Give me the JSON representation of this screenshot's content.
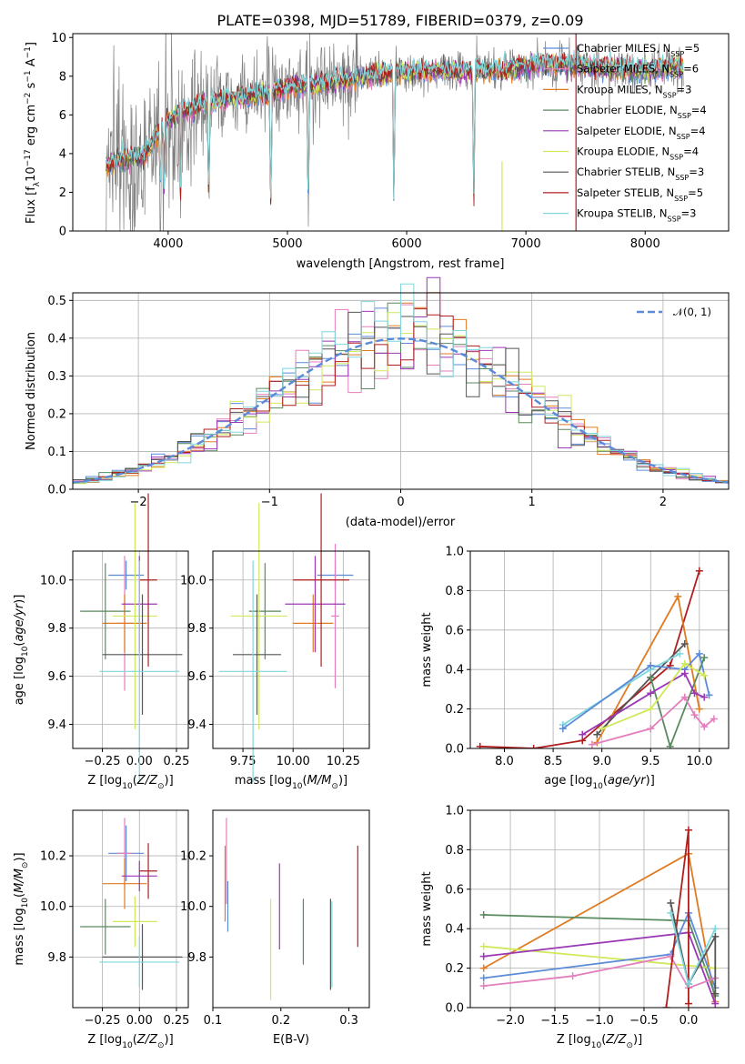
{
  "colors": {
    "chabrier_miles": "#5b8bd8",
    "salpeter_miles": "#e37fbd",
    "kroupa_miles": "#e07b22",
    "chabrier_elodie": "#5a8a5f",
    "salpeter_elodie": "#9b37b5",
    "kroupa_elodie": "#cfe95a",
    "chabrier_stelib": "#555555",
    "salpeter_stelib": "#b01e1e",
    "kroupa_stelib": "#7fd6dc",
    "spectrum_data": "#808080",
    "normal_curve": "#5b8bd8"
  },
  "chart_data": [
    {
      "id": "spectrum",
      "type": "line",
      "title": "PLATE=0398, MJD=51789, FIBERID=0379, z=0.09",
      "xlabel": "wavelength [Angstrom, rest frame]",
      "ylabel": "Flux [f_λ 10^-17 erg cm^-2 s^-1 A^-1]",
      "xlim": [
        3200,
        8700
      ],
      "ylim": [
        0,
        10.2
      ],
      "xticks": [
        "4000",
        "5000",
        "6000",
        "7000",
        "8000"
      ],
      "yticks": [
        "0",
        "2",
        "4",
        "6",
        "8",
        "10"
      ],
      "legend_placement": "upper right",
      "legend": [
        {
          "label": "Chabrier MILES, N_SSP=5",
          "color": "chabrier_miles"
        },
        {
          "label": "Salpeter MILES, N_SSP=6",
          "color": "salpeter_miles"
        },
        {
          "label": "Kroupa MILES, N_SSP=3",
          "color": "kroupa_miles"
        },
        {
          "label": "Chabrier ELODIE, N_SSP=4",
          "color": "chabrier_elodie"
        },
        {
          "label": "Salpeter ELODIE, N_SSP=4",
          "color": "salpeter_elodie"
        },
        {
          "label": "Kroupa ELODIE, N_SSP=4",
          "color": "kroupa_elodie"
        },
        {
          "label": "Chabrier STELIB, N_SSP=3",
          "color": "chabrier_stelib"
        },
        {
          "label": "Salpeter STELIB, N_SSP=5",
          "color": "salpeter_stelib"
        },
        {
          "label": "Kroupa STELIB, N_SSP=3",
          "color": "kroupa_stelib"
        }
      ],
      "continuum": [
        [
          3480,
          3.4
        ],
        [
          3600,
          3.7
        ],
        [
          3800,
          3.9
        ],
        [
          3950,
          5.4
        ],
        [
          4100,
          6.2
        ],
        [
          4300,
          6.5
        ],
        [
          4500,
          6.8
        ],
        [
          4800,
          7.1
        ],
        [
          5000,
          7.4
        ],
        [
          5300,
          7.6
        ],
        [
          5600,
          7.9
        ],
        [
          5900,
          8.2
        ],
        [
          6200,
          8.3
        ],
        [
          6500,
          8.2
        ],
        [
          6800,
          8.3
        ],
        [
          7100,
          8.6
        ],
        [
          7400,
          8.6
        ],
        [
          7700,
          8.4
        ],
        [
          8000,
          8.3
        ],
        [
          8300,
          8.5
        ]
      ],
      "absorption_lines": [
        [
          3934,
          2.4
        ],
        [
          3968,
          2.0
        ],
        [
          4102,
          1.0
        ],
        [
          4250,
          7.0
        ],
        [
          4340,
          1.3
        ],
        [
          4861,
          1.0
        ],
        [
          5175,
          0.8
        ],
        [
          5893,
          1.2
        ],
        [
          6563,
          1.0
        ],
        [
          6800,
          8.5
        ]
      ],
      "vertical_spikes": [
        {
          "x": 6800,
          "y0": 0,
          "y1": 3.6,
          "color": "kroupa_elodie"
        },
        {
          "x": 7420,
          "y0": 0,
          "y1": 10.2,
          "color": "salpeter_stelib"
        }
      ]
    },
    {
      "id": "residuals",
      "type": "line",
      "xlabel": "(data-model)/error",
      "ylabel": "Normed distribution",
      "xlim": [
        -2.5,
        2.5
      ],
      "ylim": [
        0,
        0.52
      ],
      "xticks": [
        "−2",
        "−1",
        "0",
        "1",
        "2"
      ],
      "yticks": [
        "0.0",
        "0.1",
        "0.2",
        "0.3",
        "0.4",
        "0.5"
      ],
      "grid": true,
      "legend_placement": "upper right",
      "legend": [
        {
          "label": "𝒩(0, 1)",
          "color": "normal_curve",
          "style": "dashed"
        }
      ],
      "normal": {
        "mean": 0,
        "sigma": 1
      },
      "histogram_bin_width": 0.1,
      "histogram_series": [
        "chabrier_miles",
        "salpeter_miles",
        "kroupa_miles",
        "chabrier_elodie",
        "salpeter_elodie",
        "kroupa_elodie",
        "chabrier_stelib",
        "salpeter_stelib",
        "kroupa_stelib"
      ]
    },
    {
      "id": "age_vs_Z",
      "type": "scatter",
      "xlabel": "Z [log10(Z/Z⊙)]",
      "ylabel": "age [log10(age/yr)]",
      "xlim": [
        -0.45,
        0.33
      ],
      "ylim": [
        9.3,
        10.12
      ],
      "xticks": [
        {
          "v": -0.25,
          "t": "−0.25"
        },
        {
          "v": 0,
          "t": "0.00"
        },
        {
          "v": 0.25,
          "t": "0.25"
        }
      ],
      "yticks": [
        {
          "v": 9.4,
          "t": "9.4"
        },
        {
          "v": 9.6,
          "t": "9.6"
        },
        {
          "v": 9.8,
          "t": "9.8"
        },
        {
          "v": 10.0,
          "t": "10.0"
        }
      ],
      "grid": true,
      "points": [
        {
          "c": "chabrier_miles",
          "x": -0.09,
          "xe": 0.12,
          "y": 10.02,
          "ye": 0.06
        },
        {
          "c": "salpeter_miles",
          "x": -0.1,
          "xe": 0.05,
          "y": 9.82,
          "ye": 0.28
        },
        {
          "c": "kroupa_miles",
          "x": -0.1,
          "xe": 0.15,
          "y": 9.82,
          "ye": 0.12
        },
        {
          "c": "chabrier_elodie",
          "x": -0.23,
          "xe": 0.17,
          "y": 9.87,
          "ye": 0.2
        },
        {
          "c": "salpeter_elodie",
          "x": 0.0,
          "xe": 0.12,
          "y": 9.9,
          "ye": 0.2
        },
        {
          "c": "kroupa_elodie",
          "x": -0.03,
          "xe": 0.15,
          "y": 9.85,
          "ye": 0.47
        },
        {
          "c": "chabrier_stelib",
          "x": 0.02,
          "xe": 0.27,
          "y": 9.69,
          "ye": 0.25
        },
        {
          "c": "salpeter_stelib",
          "x": 0.06,
          "xe": 0.06,
          "y": 10.0,
          "ye": 0.36
        },
        {
          "c": "kroupa_stelib",
          "x": 0.0,
          "xe": 0.27,
          "y": 9.62,
          "ye": 0.46
        }
      ]
    },
    {
      "id": "age_vs_mass",
      "type": "scatter",
      "xlabel": "mass [log10(M/M⊙)]",
      "xlim": [
        9.6,
        10.38
      ],
      "ylim": [
        9.3,
        10.12
      ],
      "xticks": [
        {
          "v": 9.75,
          "t": "9.75"
        },
        {
          "v": 10.0,
          "t": "10.00"
        },
        {
          "v": 10.25,
          "t": "10.25"
        }
      ],
      "yticks": [
        {
          "v": 9.4,
          "t": "9.4"
        },
        {
          "v": 9.6,
          "t": "9.6"
        },
        {
          "v": 9.8,
          "t": "9.8"
        },
        {
          "v": 10.0,
          "t": "10.0"
        }
      ],
      "grid": true,
      "points": [
        {
          "c": "chabrier_miles",
          "x": 10.21,
          "xe": 0.09,
          "y": 10.02,
          "ye": 0.06
        },
        {
          "c": "salpeter_miles",
          "x": 10.21,
          "xe": 0.02,
          "y": 9.85,
          "ye": 0.3
        },
        {
          "c": "kroupa_miles",
          "x": 10.1,
          "xe": 0.1,
          "y": 9.82,
          "ye": 0.12
        },
        {
          "c": "chabrier_elodie",
          "x": 9.86,
          "xe": 0.08,
          "y": 9.87,
          "ye": 0.2
        },
        {
          "c": "salpeter_elodie",
          "x": 10.11,
          "xe": 0.15,
          "y": 9.9,
          "ye": 0.2
        },
        {
          "c": "kroupa_elodie",
          "x": 9.83,
          "xe": 0.14,
          "y": 9.85,
          "ye": 0.47
        },
        {
          "c": "chabrier_stelib",
          "x": 9.82,
          "xe": 0.12,
          "y": 9.69,
          "ye": 0.25
        },
        {
          "c": "salpeter_stelib",
          "x": 10.14,
          "xe": 0.14,
          "y": 10.0,
          "ye": 0.36
        },
        {
          "c": "kroupa_stelib",
          "x": 9.8,
          "xe": 0.17,
          "y": 9.62,
          "ye": 0.46
        }
      ]
    },
    {
      "id": "mass_weight_vs_age",
      "type": "line",
      "xlabel": "age [log10(age/yr)]",
      "ylabel": "mass weight",
      "xlim": [
        7.65,
        10.3
      ],
      "ylim": [
        0,
        1.0
      ],
      "xticks": [
        {
          "v": 8.0,
          "t": "8.0"
        },
        {
          "v": 8.5,
          "t": "8.5"
        },
        {
          "v": 9.0,
          "t": "9.0"
        },
        {
          "v": 9.5,
          "t": "9.5"
        },
        {
          "v": 10.0,
          "t": "10.0"
        }
      ],
      "yticks": [
        {
          "v": 0,
          "t": "0.0"
        },
        {
          "v": 0.2,
          "t": "0.2"
        },
        {
          "v": 0.4,
          "t": "0.4"
        },
        {
          "v": 0.6,
          "t": "0.6"
        },
        {
          "v": 0.8,
          "t": "0.8"
        },
        {
          "v": 1.0,
          "t": "1.0"
        }
      ],
      "grid": true,
      "series": [
        {
          "c": "salpeter_stelib",
          "x": [
            7.75,
            8.3,
            8.8,
            9.7,
            10.0
          ],
          "y": [
            0.01,
            0.0,
            0.04,
            0.42,
            0.9
          ]
        },
        {
          "c": "kroupa_miles",
          "x": [
            8.95,
            9.78,
            10.0
          ],
          "y": [
            0.03,
            0.77,
            0.2
          ]
        },
        {
          "c": "chabrier_stelib",
          "x": [
            8.95,
            9.5,
            9.85
          ],
          "y": [
            0.07,
            0.36,
            0.53
          ]
        },
        {
          "c": "kroupa_stelib",
          "x": [
            8.6,
            9.5,
            9.8
          ],
          "y": [
            0.12,
            0.4,
            0.48
          ]
        },
        {
          "c": "chabrier_miles",
          "x": [
            8.6,
            9.5,
            9.85,
            10.0,
            10.1
          ],
          "y": [
            0.1,
            0.42,
            0.4,
            0.48,
            0.27
          ]
        },
        {
          "c": "chabrier_elodie",
          "x": [
            9.5,
            9.7,
            10.05
          ],
          "y": [
            0.36,
            0.01,
            0.46
          ]
        },
        {
          "c": "salpeter_elodie",
          "x": [
            8.8,
            9.5,
            9.85,
            9.95,
            10.05
          ],
          "y": [
            0.07,
            0.28,
            0.38,
            0.28,
            0.26
          ]
        },
        {
          "c": "kroupa_elodie",
          "x": [
            9.0,
            9.5,
            9.85,
            10.05
          ],
          "y": [
            0.1,
            0.2,
            0.43,
            0.37
          ]
        },
        {
          "c": "salpeter_miles",
          "x": [
            8.9,
            9.5,
            9.85,
            9.95,
            10.05,
            10.15
          ],
          "y": [
            0.02,
            0.1,
            0.26,
            0.17,
            0.11,
            0.15
          ]
        }
      ]
    },
    {
      "id": "mass_vs_Z",
      "type": "scatter",
      "xlabel": "Z [log10(Z/Z⊙)]",
      "ylabel": "mass [log10(M/M⊙)]",
      "xlim": [
        -0.45,
        0.33
      ],
      "ylim": [
        9.6,
        10.38
      ],
      "xticks": [
        {
          "v": -0.25,
          "t": "−0.25"
        },
        {
          "v": 0,
          "t": "0.00"
        },
        {
          "v": 0.25,
          "t": "0.25"
        }
      ],
      "yticks": [
        {
          "v": 9.8,
          "t": "9.8"
        },
        {
          "v": 10.0,
          "t": "10.0"
        },
        {
          "v": 10.2,
          "t": "10.2"
        }
      ],
      "grid": true,
      "points": [
        {
          "c": "chabrier_miles",
          "x": -0.09,
          "xe": 0.12,
          "y": 10.21,
          "ye": 0.11
        },
        {
          "c": "salpeter_miles",
          "x": -0.1,
          "xe": 0.05,
          "y": 10.21,
          "ye": 0.14
        },
        {
          "c": "kroupa_miles",
          "x": -0.1,
          "xe": 0.15,
          "y": 10.09,
          "ye": 0.1
        },
        {
          "c": "chabrier_elodie",
          "x": -0.23,
          "xe": 0.17,
          "y": 9.92,
          "ye": 0.11
        },
        {
          "c": "salpeter_elodie",
          "x": 0.0,
          "xe": 0.12,
          "y": 10.12,
          "ye": 0.06
        },
        {
          "c": "kroupa_elodie",
          "x": -0.03,
          "xe": 0.15,
          "y": 9.94,
          "ye": 0.1
        },
        {
          "c": "chabrier_stelib",
          "x": 0.02,
          "xe": 0.27,
          "y": 9.8,
          "ye": 0.13
        },
        {
          "c": "salpeter_stelib",
          "x": 0.06,
          "xe": 0.06,
          "y": 10.14,
          "ye": 0.11
        },
        {
          "c": "kroupa_stelib",
          "x": 0.0,
          "xe": 0.27,
          "y": 9.78,
          "ye": 0.1
        }
      ]
    },
    {
      "id": "mass_vs_EBV",
      "type": "scatter",
      "xlabel": "E(B-V)",
      "xlim": [
        0.1,
        0.33
      ],
      "ylim": [
        9.6,
        10.38
      ],
      "xticks": [
        {
          "v": 0.1,
          "t": "0.1"
        },
        {
          "v": 0.2,
          "t": "0.2"
        },
        {
          "v": 0.3,
          "t": "0.3"
        }
      ],
      "yticks": [
        {
          "v": 9.8,
          "t": "9.8"
        },
        {
          "v": 10.0,
          "t": "10.0"
        },
        {
          "v": 10.2,
          "t": "10.2"
        }
      ],
      "points": [
        {
          "c": "kroupa_miles",
          "x": 0.118,
          "xe": 0,
          "y": 10.09,
          "ye": 0.15
        },
        {
          "c": "salpeter_miles",
          "x": 0.12,
          "xe": 0,
          "y": 10.18,
          "ye": 0.17
        },
        {
          "c": "chabrier_miles",
          "x": 0.122,
          "xe": 0,
          "y": 10.0,
          "ye": 0.1
        },
        {
          "c": "kroupa_elodie",
          "x": 0.185,
          "xe": 0,
          "y": 9.83,
          "ye": 0.2
        },
        {
          "c": "salpeter_elodie",
          "x": 0.198,
          "xe": 0,
          "y": 10.0,
          "ye": 0.17
        },
        {
          "c": "chabrier_elodie",
          "x": 0.233,
          "xe": 0,
          "y": 9.9,
          "ye": 0.13
        },
        {
          "c": "chabrier_stelib",
          "x": 0.273,
          "xe": 0,
          "y": 9.85,
          "ye": 0.18
        },
        {
          "c": "kroupa_stelib",
          "x": 0.275,
          "xe": 0,
          "y": 9.85,
          "ye": 0.17
        },
        {
          "c": "salpeter_stelib",
          "x": 0.313,
          "xe": 0,
          "y": 10.04,
          "ye": 0.2
        }
      ]
    },
    {
      "id": "mass_weight_vs_Z",
      "type": "line",
      "xlabel": "Z [log10(Z/Z⊙)]",
      "ylabel": "mass weight",
      "xlim": [
        -2.45,
        0.45
      ],
      "ylim": [
        0,
        1.0
      ],
      "xticks": [
        {
          "v": -2.0,
          "t": "−2.0"
        },
        {
          "v": -1.5,
          "t": "−1.5"
        },
        {
          "v": -1.0,
          "t": "−1.0"
        },
        {
          "v": -0.5,
          "t": "−0.5"
        },
        {
          "v": 0.0,
          "t": "0.0"
        }
      ],
      "yticks": [
        {
          "v": 0,
          "t": "0.0"
        },
        {
          "v": 0.2,
          "t": "0.2"
        },
        {
          "v": 0.4,
          "t": "0.4"
        },
        {
          "v": 0.6,
          "t": "0.6"
        },
        {
          "v": 0.8,
          "t": "0.8"
        },
        {
          "v": 1.0,
          "t": "1.0"
        }
      ],
      "grid": true,
      "series": [
        {
          "c": "kroupa_miles",
          "x": [
            -2.3,
            0.0,
            0.3
          ],
          "y": [
            0.2,
            0.78,
            0.03
          ]
        },
        {
          "c": "chabrier_elodie",
          "x": [
            -2.3,
            0.0,
            0.3
          ],
          "y": [
            0.47,
            0.44,
            0.06
          ]
        },
        {
          "c": "kroupa_elodie",
          "x": [
            -2.3,
            0.3
          ],
          "y": [
            0.31,
            0.2
          ]
        },
        {
          "c": "salpeter_elodie",
          "x": [
            -2.3,
            0.0,
            0.3
          ],
          "y": [
            0.26,
            0.38,
            0.02
          ]
        },
        {
          "c": "chabrier_miles",
          "x": [
            -2.3,
            -0.2,
            0.0,
            0.3
          ],
          "y": [
            0.15,
            0.27,
            0.48,
            0.1
          ]
        },
        {
          "c": "salpeter_miles",
          "x": [
            -2.3,
            -1.3,
            -0.2,
            0.0,
            0.3
          ],
          "y": [
            0.11,
            0.16,
            0.26,
            0.1,
            0.15
          ]
        },
        {
          "c": "salpeter_stelib",
          "x": [
            -0.25,
            0.0,
            0.0
          ],
          "y": [
            0.0,
            0.9,
            0.02
          ]
        },
        {
          "c": "chabrier_stelib",
          "x": [
            -0.2,
            0.0,
            0.3,
            0.3
          ],
          "y": [
            0.53,
            0.12,
            0.36,
            0.07
          ]
        },
        {
          "c": "kroupa_stelib",
          "x": [
            -0.2,
            0.0,
            0.3
          ],
          "y": [
            0.48,
            0.12,
            0.4
          ]
        }
      ]
    }
  ]
}
